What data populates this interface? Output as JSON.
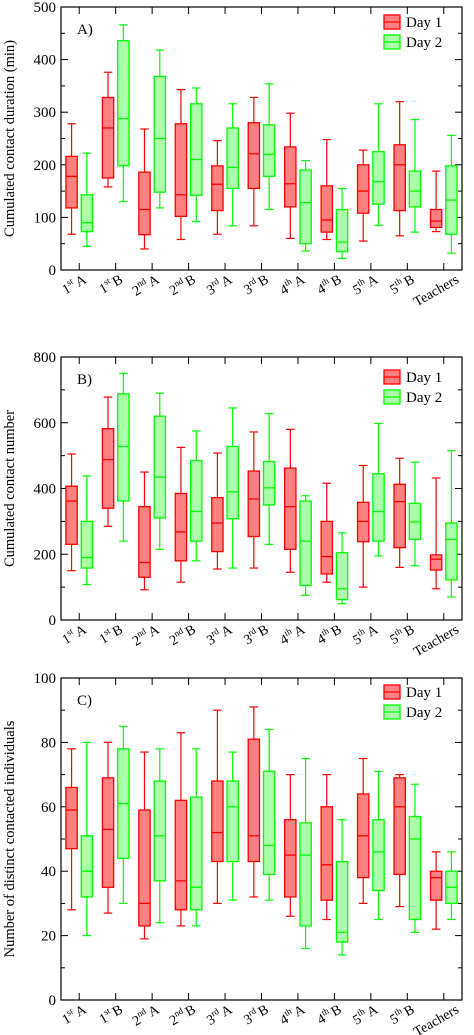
{
  "chart_data": [
    {
      "type": "box",
      "panel_label": "A)",
      "ylabel": "Cumulated contact duration (min)",
      "ylim": [
        0,
        500
      ],
      "yticks": [
        0,
        100,
        200,
        300,
        400,
        500
      ],
      "categories": [
        {
          "base": "1",
          "sup": "st",
          "suffix": "A"
        },
        {
          "base": "1",
          "sup": "st",
          "suffix": "B"
        },
        {
          "base": "2",
          "sup": "nd",
          "suffix": "A"
        },
        {
          "base": "2",
          "sup": "nd",
          "suffix": "B"
        },
        {
          "base": "3",
          "sup": "rd",
          "suffix": "A"
        },
        {
          "base": "3",
          "sup": "rd",
          "suffix": "B"
        },
        {
          "base": "4",
          "sup": "th",
          "suffix": "A"
        },
        {
          "base": "4",
          "sup": "th",
          "suffix": "B"
        },
        {
          "base": "5",
          "sup": "th",
          "suffix": "A"
        },
        {
          "base": "5",
          "sup": "th",
          "suffix": "B"
        },
        {
          "base": "Teachers",
          "sup": "",
          "suffix": ""
        }
      ],
      "legend_position": "top-right",
      "series": [
        {
          "name": "Day 1",
          "color": "#ff0000",
          "fill": "#ff8080",
          "boxes": [
            {
              "min": 68,
              "q1": 118,
              "median": 178,
              "q3": 216,
              "max": 278
            },
            {
              "min": 158,
              "q1": 175,
              "median": 270,
              "q3": 328,
              "max": 376
            },
            {
              "min": 40,
              "q1": 67,
              "median": 115,
              "q3": 186,
              "max": 268
            },
            {
              "min": 58,
              "q1": 102,
              "median": 143,
              "q3": 278,
              "max": 343
            },
            {
              "min": 68,
              "q1": 113,
              "median": 163,
              "q3": 198,
              "max": 246
            },
            {
              "min": 84,
              "q1": 155,
              "median": 221,
              "q3": 280,
              "max": 328
            },
            {
              "min": 60,
              "q1": 120,
              "median": 164,
              "q3": 234,
              "max": 298
            },
            {
              "min": 58,
              "q1": 72,
              "median": 95,
              "q3": 160,
              "max": 248
            },
            {
              "min": 55,
              "q1": 108,
              "median": 150,
              "q3": 200,
              "max": 228
            },
            {
              "min": 65,
              "q1": 113,
              "median": 200,
              "q3": 238,
              "max": 320
            },
            {
              "min": 73,
              "q1": 81,
              "median": 93,
              "q3": 115,
              "max": 188
            }
          ]
        },
        {
          "name": "Day 2",
          "color": "#00ff00",
          "fill": "#aaffaa",
          "boxes": [
            {
              "min": 45,
              "q1": 73,
              "median": 90,
              "q3": 143,
              "max": 222
            },
            {
              "min": 130,
              "q1": 198,
              "median": 288,
              "q3": 436,
              "max": 466
            },
            {
              "min": 118,
              "q1": 148,
              "median": 250,
              "q3": 368,
              "max": 418
            },
            {
              "min": 92,
              "q1": 142,
              "median": 210,
              "q3": 316,
              "max": 346
            },
            {
              "min": 84,
              "q1": 155,
              "median": 195,
              "q3": 270,
              "max": 316
            },
            {
              "min": 115,
              "q1": 178,
              "median": 220,
              "q3": 276,
              "max": 354
            },
            {
              "min": 36,
              "q1": 50,
              "median": 128,
              "q3": 190,
              "max": 208
            },
            {
              "min": 22,
              "q1": 35,
              "median": 53,
              "q3": 115,
              "max": 155
            },
            {
              "min": 85,
              "q1": 125,
              "median": 168,
              "q3": 225,
              "max": 316
            },
            {
              "min": 72,
              "q1": 120,
              "median": 150,
              "q3": 188,
              "max": 286
            },
            {
              "min": 32,
              "q1": 68,
              "median": 133,
              "q3": 198,
              "max": 256
            }
          ]
        }
      ]
    },
    {
      "type": "box",
      "panel_label": "B)",
      "ylabel": "Cumulated contact number",
      "ylim": [
        0,
        800
      ],
      "yticks": [
        0,
        200,
        400,
        600,
        800
      ],
      "categories": [
        {
          "base": "1",
          "sup": "st",
          "suffix": "A"
        },
        {
          "base": "1",
          "sup": "st",
          "suffix": "B"
        },
        {
          "base": "2",
          "sup": "nd",
          "suffix": "A"
        },
        {
          "base": "2",
          "sup": "nd",
          "suffix": "B"
        },
        {
          "base": "3",
          "sup": "rd",
          "suffix": "A"
        },
        {
          "base": "3",
          "sup": "rd",
          "suffix": "B"
        },
        {
          "base": "4",
          "sup": "th",
          "suffix": "A"
        },
        {
          "base": "4",
          "sup": "th",
          "suffix": "B"
        },
        {
          "base": "5",
          "sup": "th",
          "suffix": "A"
        },
        {
          "base": "5",
          "sup": "th",
          "suffix": "B"
        },
        {
          "base": "Teachers",
          "sup": "",
          "suffix": ""
        }
      ],
      "legend_position": "top-right",
      "series": [
        {
          "name": "Day 1",
          "color": "#ff0000",
          "fill": "#ff8080",
          "boxes": [
            {
              "min": 150,
              "q1": 230,
              "median": 362,
              "q3": 407,
              "max": 505
            },
            {
              "min": 285,
              "q1": 340,
              "median": 488,
              "q3": 582,
              "max": 678
            },
            {
              "min": 92,
              "q1": 130,
              "median": 175,
              "q3": 345,
              "max": 450
            },
            {
              "min": 115,
              "q1": 180,
              "median": 268,
              "q3": 385,
              "max": 525
            },
            {
              "min": 155,
              "q1": 208,
              "median": 295,
              "q3": 372,
              "max": 508
            },
            {
              "min": 158,
              "q1": 254,
              "median": 368,
              "q3": 453,
              "max": 572
            },
            {
              "min": 145,
              "q1": 215,
              "median": 345,
              "q3": 462,
              "max": 580
            },
            {
              "min": 115,
              "q1": 140,
              "median": 193,
              "q3": 300,
              "max": 416
            },
            {
              "min": 100,
              "q1": 238,
              "median": 300,
              "q3": 358,
              "max": 470
            },
            {
              "min": 160,
              "q1": 220,
              "median": 360,
              "q3": 413,
              "max": 492
            },
            {
              "min": 95,
              "q1": 152,
              "median": 185,
              "q3": 198,
              "max": 432
            }
          ]
        },
        {
          "name": "Day 2",
          "color": "#00ff00",
          "fill": "#aaffaa",
          "boxes": [
            {
              "min": 108,
              "q1": 158,
              "median": 190,
              "q3": 300,
              "max": 438
            },
            {
              "min": 240,
              "q1": 362,
              "median": 528,
              "q3": 688,
              "max": 750
            },
            {
              "min": 215,
              "q1": 310,
              "median": 435,
              "q3": 620,
              "max": 690
            },
            {
              "min": 180,
              "q1": 240,
              "median": 330,
              "q3": 485,
              "max": 575
            },
            {
              "min": 158,
              "q1": 308,
              "median": 390,
              "q3": 528,
              "max": 645
            },
            {
              "min": 230,
              "q1": 350,
              "median": 402,
              "q3": 482,
              "max": 628
            },
            {
              "min": 75,
              "q1": 105,
              "median": 240,
              "q3": 362,
              "max": 378
            },
            {
              "min": 50,
              "q1": 62,
              "median": 95,
              "q3": 205,
              "max": 265
            },
            {
              "min": 195,
              "q1": 240,
              "median": 330,
              "q3": 445,
              "max": 598
            },
            {
              "min": 165,
              "q1": 245,
              "median": 298,
              "q3": 355,
              "max": 480
            },
            {
              "min": 70,
              "q1": 122,
              "median": 245,
              "q3": 295,
              "max": 515
            }
          ]
        }
      ]
    },
    {
      "type": "box",
      "panel_label": "C)",
      "ylabel": "Number of distinct contacted individuals",
      "ylim": [
        0,
        100
      ],
      "yticks": [
        0,
        20,
        40,
        60,
        80,
        100
      ],
      "categories": [
        {
          "base": "1",
          "sup": "st",
          "suffix": "A"
        },
        {
          "base": "1",
          "sup": "st",
          "suffix": "B"
        },
        {
          "base": "2",
          "sup": "nd",
          "suffix": "A"
        },
        {
          "base": "2",
          "sup": "nd",
          "suffix": "B"
        },
        {
          "base": "3",
          "sup": "rd",
          "suffix": "A"
        },
        {
          "base": "3",
          "sup": "rd",
          "suffix": "B"
        },
        {
          "base": "4",
          "sup": "th",
          "suffix": "A"
        },
        {
          "base": "4",
          "sup": "th",
          "suffix": "B"
        },
        {
          "base": "5",
          "sup": "th",
          "suffix": "A"
        },
        {
          "base": "5",
          "sup": "th",
          "suffix": "B"
        },
        {
          "base": "Teachers",
          "sup": "",
          "suffix": ""
        }
      ],
      "legend_position": "top-right",
      "series": [
        {
          "name": "Day 1",
          "color": "#ff0000",
          "fill": "#ff8080",
          "boxes": [
            {
              "min": 28,
              "q1": 47,
              "median": 59,
              "q3": 66,
              "max": 78
            },
            {
              "min": 27,
              "q1": 35,
              "median": 53,
              "q3": 69,
              "max": 80
            },
            {
              "min": 19,
              "q1": 23,
              "median": 30,
              "q3": 59,
              "max": 77
            },
            {
              "min": 23,
              "q1": 28,
              "median": 37,
              "q3": 62,
              "max": 83
            },
            {
              "min": 30,
              "q1": 43,
              "median": 52,
              "q3": 68,
              "max": 90
            },
            {
              "min": 32,
              "q1": 43,
              "median": 51,
              "q3": 81,
              "max": 91
            },
            {
              "min": 26,
              "q1": 32,
              "median": 45,
              "q3": 56,
              "max": 70
            },
            {
              "min": 25,
              "q1": 31,
              "median": 42,
              "q3": 60,
              "max": 70
            },
            {
              "min": 30,
              "q1": 38,
              "median": 51,
              "q3": 64,
              "max": 75
            },
            {
              "min": 29,
              "q1": 39,
              "median": 60,
              "q3": 69,
              "max": 70
            },
            {
              "min": 22,
              "q1": 31,
              "median": 38,
              "q3": 40,
              "max": 46
            }
          ]
        },
        {
          "name": "Day 2",
          "color": "#00ff00",
          "fill": "#aaffaa",
          "boxes": [
            {
              "min": 20,
              "q1": 32,
              "median": 40,
              "q3": 51,
              "max": 80
            },
            {
              "min": 30,
              "q1": 44,
              "median": 61,
              "q3": 78,
              "max": 85
            },
            {
              "min": 24,
              "q1": 37,
              "median": 51,
              "q3": 68,
              "max": 78
            },
            {
              "min": 23,
              "q1": 28,
              "median": 35,
              "q3": 63,
              "max": 78
            },
            {
              "min": 31,
              "q1": 43,
              "median": 60,
              "q3": 68,
              "max": 77
            },
            {
              "min": 31,
              "q1": 39,
              "median": 48,
              "q3": 71,
              "max": 84
            },
            {
              "min": 16,
              "q1": 23,
              "median": 45,
              "q3": 55,
              "max": 75
            },
            {
              "min": 14,
              "q1": 18,
              "median": 21,
              "q3": 43,
              "max": 56
            },
            {
              "min": 25,
              "q1": 34,
              "median": 46,
              "q3": 56,
              "max": 71
            },
            {
              "min": 21,
              "q1": 25,
              "median": 50,
              "q3": 57,
              "max": 67
            },
            {
              "min": 25,
              "q1": 30,
              "median": 35,
              "q3": 40,
              "max": 46
            }
          ]
        }
      ]
    }
  ]
}
